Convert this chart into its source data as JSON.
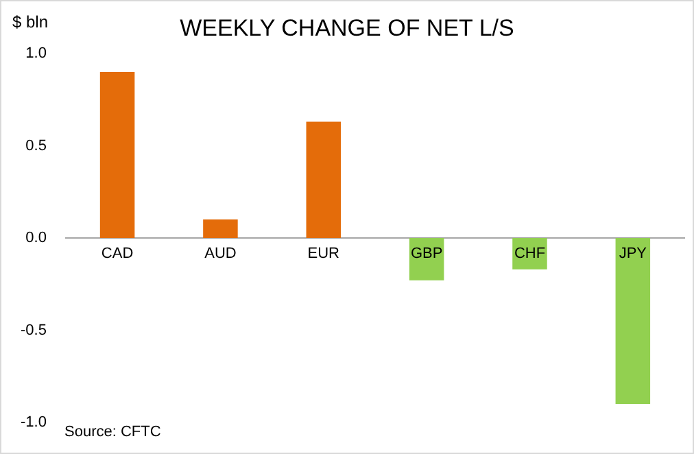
{
  "chart_data": {
    "type": "bar",
    "title": "WEEKLY CHANGE OF NET L/S",
    "ylabel": "$ bln",
    "categories": [
      "CAD",
      "AUD",
      "EUR",
      "GBP",
      "CHF",
      "JPY"
    ],
    "values": [
      0.9,
      0.1,
      0.63,
      -0.23,
      -0.17,
      -0.9
    ],
    "colors": [
      "#e46c0a",
      "#e46c0a",
      "#e46c0a",
      "#92d050",
      "#92d050",
      "#92d050"
    ],
    "ylim": [
      -1,
      1
    ],
    "yticks": [
      {
        "value": 1,
        "label": "1.0"
      },
      {
        "value": 0.5,
        "label": "0.5"
      },
      {
        "value": 0,
        "label": "0.0"
      },
      {
        "value": -0.5,
        "label": "-0.5"
      },
      {
        "value": -1,
        "label": "-1.0"
      }
    ],
    "grid": false,
    "legend": false,
    "annotations": [
      "Source: CFTC"
    ]
  }
}
